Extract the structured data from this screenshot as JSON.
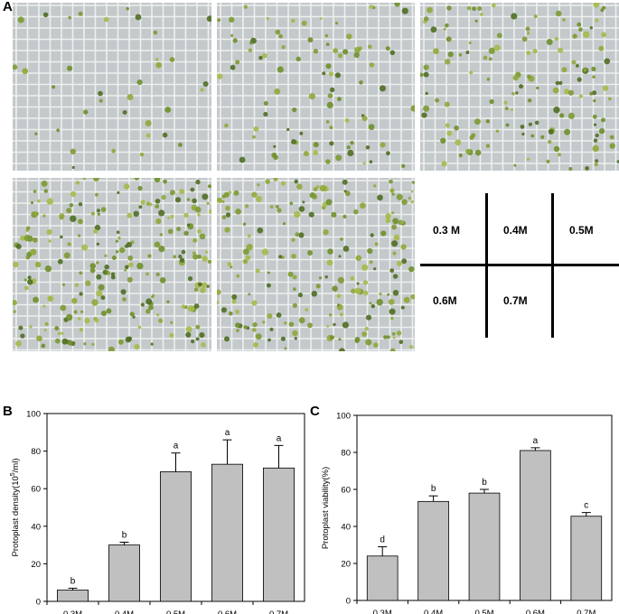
{
  "figure": {
    "panel_a_label": "A",
    "panel_b_label": "B",
    "panel_c_label": "C",
    "micrographs": [
      "0.3 M",
      "0.4M",
      "0.5M",
      "0.6M",
      "0.7M"
    ],
    "key": {
      "cells": [
        "0.3 M",
        "0.4M",
        "0.5M",
        "0.6M",
        "0.7M",
        ""
      ]
    }
  },
  "chart_data": [
    {
      "type": "bar",
      "panel": "B",
      "categories": [
        "0.3M",
        "0.4M",
        "0.5M",
        "0.6M",
        "0.7M"
      ],
      "values": [
        6,
        30,
        69,
        73,
        71
      ],
      "errors": [
        1,
        1.5,
        10,
        13,
        12
      ],
      "significance": [
        "b",
        "b",
        "a",
        "a",
        "a"
      ],
      "ylabel": "Protoplast density(10⁵/ml)",
      "ylabel_main": "Protoplast density(10",
      "ylabel_sup": "5",
      "ylabel_end": "/ml)",
      "ylim": [
        0,
        100
      ],
      "yticks": [
        0,
        20,
        40,
        60,
        80,
        100
      ],
      "grid": false,
      "bar_color": "#c0c0c0"
    },
    {
      "type": "bar",
      "panel": "C",
      "categories": [
        "0.3M",
        "0.4M",
        "0.5M",
        "0.6M",
        "0.7M"
      ],
      "values": [
        24,
        53.5,
        58,
        81,
        45.5
      ],
      "errors": [
        5,
        3,
        2,
        1.5,
        2
      ],
      "significance": [
        "d",
        "b",
        "b",
        "a",
        "c"
      ],
      "ylabel": "Protoplast viability(%)",
      "ylim": [
        0,
        100
      ],
      "yticks": [
        0,
        20,
        40,
        60,
        80,
        100
      ],
      "grid": false,
      "bar_color": "#c0c0c0"
    }
  ]
}
